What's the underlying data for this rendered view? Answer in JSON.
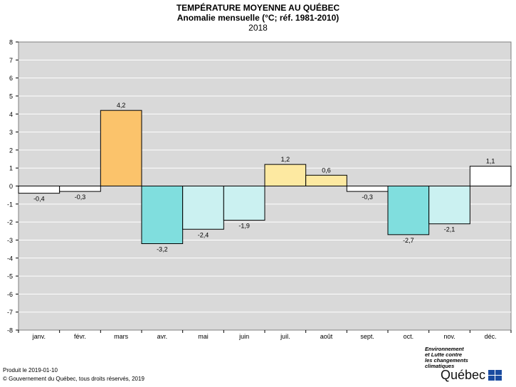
{
  "header": {
    "title": "TEMPÉRATURE MOYENNE AU QUÉBEC",
    "subtitle": "Anomalie mensuelle (°C; réf. 1981-2010)",
    "year": "2018"
  },
  "footer": {
    "produced": "Produit le 2019-01-10",
    "copyright": "© Gouvernement du Québec, tous droits réservés, 2019"
  },
  "logo": {
    "tagline_1": "Environnement",
    "tagline_2": "et Lutte contre",
    "tagline_3": "les changements",
    "tagline_4": "climatiques",
    "wordmark": "Québec",
    "icon": "fleur-de-lis-flag-icon"
  },
  "chart_data": {
    "type": "bar",
    "title": "TEMPÉRATURE MOYENNE AU QUÉBEC",
    "subtitle": "Anomalie mensuelle (°C; réf. 1981-2010)",
    "categories": [
      "janv.",
      "févr.",
      "mars",
      "avr.",
      "mai",
      "juin",
      "juil.",
      "août",
      "sept.",
      "oct.",
      "nov.",
      "déc."
    ],
    "values": [
      -0.4,
      -0.3,
      4.2,
      -3.2,
      -2.4,
      -1.9,
      1.2,
      0.6,
      -0.3,
      -2.7,
      -2.1,
      1.1
    ],
    "labels": [
      "-0,4",
      "-0,3",
      "4,2",
      "-3,2",
      "-2,4",
      "-1,9",
      "1,2",
      "0,6",
      "-0,3",
      "-2,7",
      "-2,1",
      "1,1"
    ],
    "colors": [
      "#ffffff",
      "#ffffff",
      "#fbc36b",
      "#80dede",
      "#cbf1f1",
      "#cbf1f1",
      "#fde9a1",
      "#fde9a1",
      "#ffffff",
      "#80dede",
      "#cbf1f1",
      "#ffffff"
    ],
    "ylim": [
      -8,
      8
    ],
    "yticks": [
      8,
      7,
      6,
      5,
      4,
      3,
      2,
      1,
      0,
      -1,
      -2,
      -3,
      -4,
      -5,
      -6,
      -7,
      -8
    ],
    "plot_background": "#d9d9d9",
    "grid": true,
    "xlabel": "",
    "ylabel": ""
  }
}
